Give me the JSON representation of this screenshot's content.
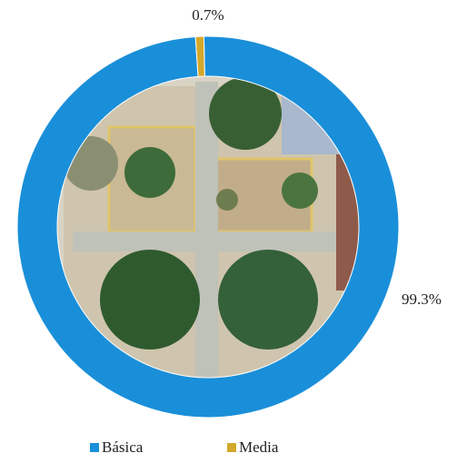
{
  "chart_data": {
    "type": "pie",
    "hole": true,
    "categories": [
      "Básica",
      "Media"
    ],
    "values": [
      99.3,
      0.7
    ],
    "value_labels": [
      "99.3%",
      "0.7%"
    ],
    "colors": [
      "#1a8fd9",
      "#d4a82a"
    ],
    "legend": "bottom"
  }
}
